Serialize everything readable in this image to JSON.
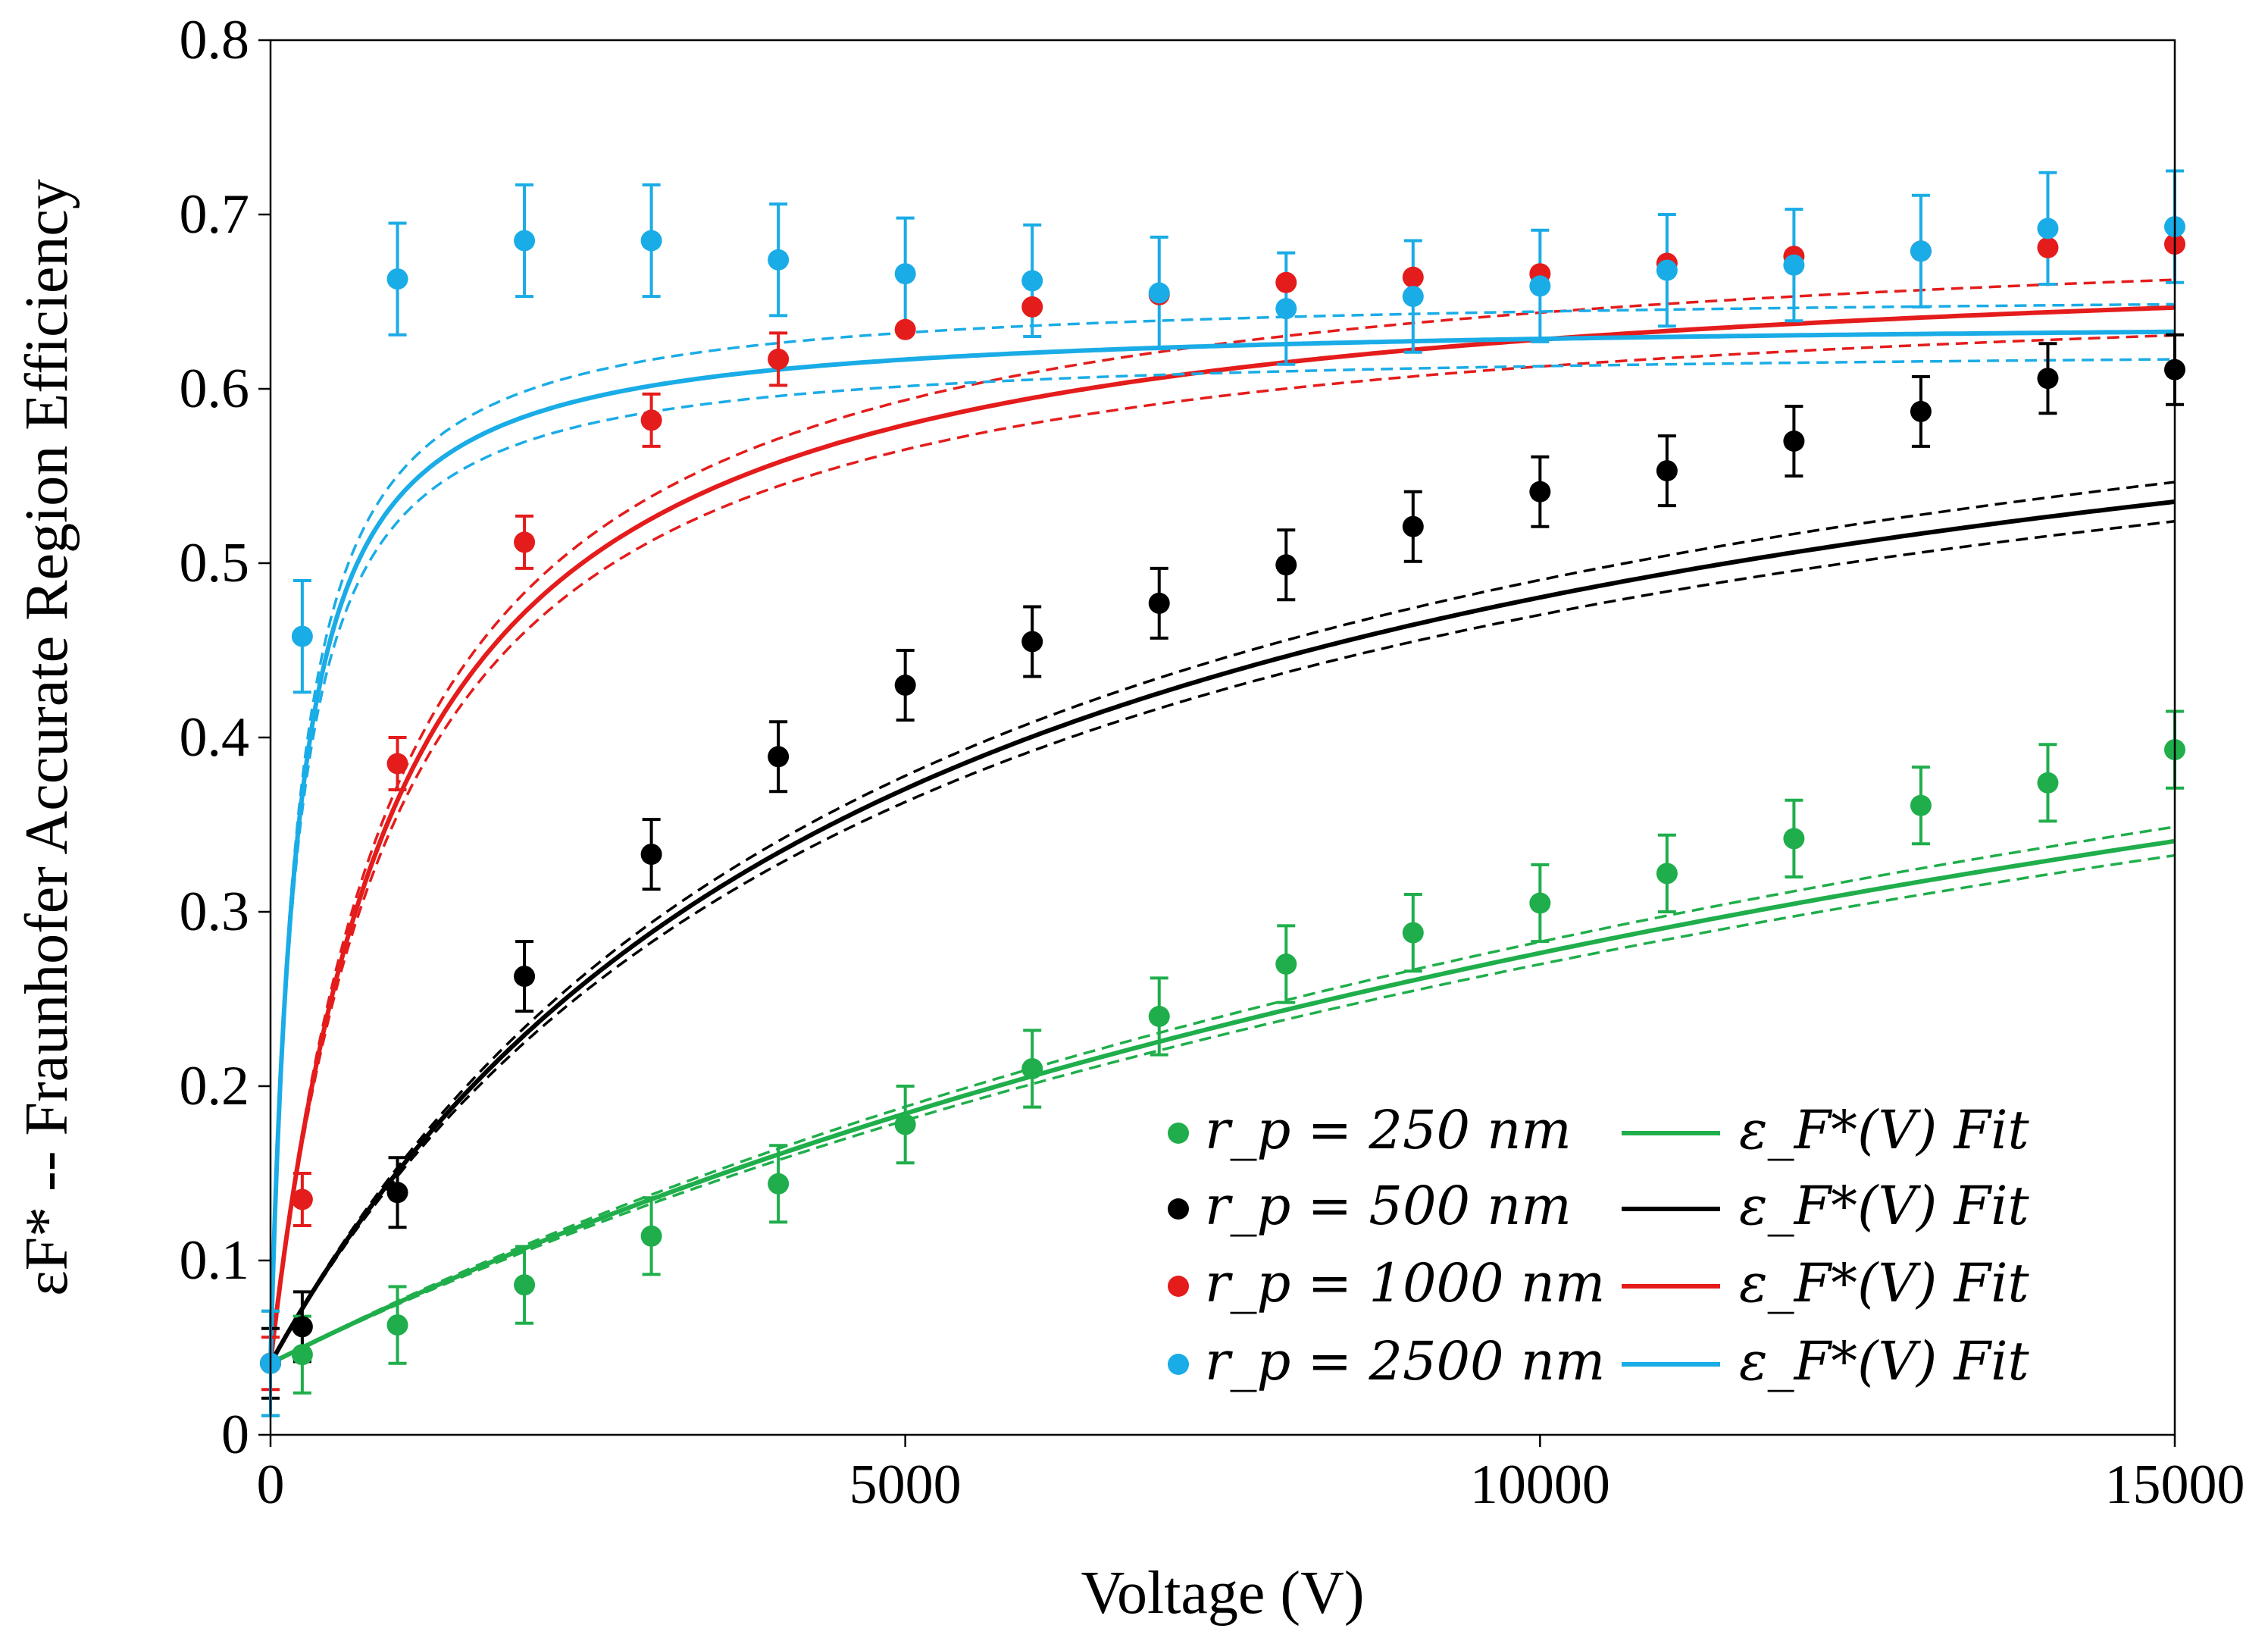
{
  "chart_data": {
    "type": "scatter",
    "xlabel": "Voltage (V)",
    "ylabel": "εF* -- Fraunhofer Accurate Region Efficiency",
    "xlim": [
      0,
      15000
    ],
    "ylim": [
      0,
      0.8
    ],
    "xticks": [
      0,
      5000,
      10000,
      15000
    ],
    "yticks": [
      0,
      0.1,
      0.2,
      0.3,
      0.4,
      0.5,
      0.6,
      0.7,
      0.8
    ],
    "legend_position": "bottom-right",
    "grid": false,
    "series": [
      {
        "name": "r_p = 250 nm",
        "fit_name": "ε_F*(V) Fit",
        "color": "#1fae4b",
        "x": [
          0,
          250,
          1000,
          2000,
          3000,
          4000,
          5000,
          6000,
          7000,
          8000,
          9000,
          10000,
          11000,
          12000,
          13000,
          14000,
          15000
        ],
        "y": [
          0.041,
          0.046,
          0.063,
          0.086,
          0.114,
          0.144,
          0.178,
          0.21,
          0.24,
          0.27,
          0.288,
          0.305,
          0.322,
          0.342,
          0.361,
          0.374,
          0.393
        ],
        "err": [
          0.03,
          0.022,
          0.022,
          0.022,
          0.022,
          0.022,
          0.022,
          0.022,
          0.022,
          0.022,
          0.022,
          0.022,
          0.022,
          0.022,
          0.022,
          0.022,
          0.022
        ],
        "fit": {
          "a": 0.041,
          "b": 0.7,
          "c": 18000,
          "band": 0.018
        }
      },
      {
        "name": "r_p = 500 nm",
        "fit_name": "ε_F*(V) Fit",
        "color": "#000000",
        "x": [
          0,
          250,
          1000,
          2000,
          3000,
          4000,
          5000,
          6000,
          7000,
          8000,
          9000,
          10000,
          11000,
          12000,
          13000,
          14000,
          15000
        ],
        "y": [
          0.041,
          0.062,
          0.139,
          0.263,
          0.333,
          0.389,
          0.43,
          0.455,
          0.477,
          0.499,
          0.521,
          0.541,
          0.553,
          0.57,
          0.587,
          0.606,
          0.611
        ],
        "err": [
          0.02,
          0.02,
          0.02,
          0.02,
          0.02,
          0.02,
          0.02,
          0.02,
          0.02,
          0.02,
          0.02,
          0.02,
          0.02,
          0.02,
          0.02,
          0.02,
          0.02
        ],
        "fit": {
          "a": 0.041,
          "b": 0.7,
          "c": 5000,
          "band": 0.015
        }
      },
      {
        "name": "r_p = 1000 nm",
        "fit_name": "ε_F*(V) Fit",
        "color": "#e41c1c",
        "x": [
          0,
          250,
          1000,
          2000,
          3000,
          4000,
          5000,
          6000,
          7000,
          8000,
          9000,
          10000,
          11000,
          12000,
          13000,
          14000,
          15000
        ],
        "y": [
          0.041,
          0.135,
          0.385,
          0.512,
          0.582,
          0.617,
          0.634,
          0.647,
          0.654,
          0.661,
          0.664,
          0.666,
          0.672,
          0.676,
          0.679,
          0.681,
          0.683
        ],
        "err": [
          0.015,
          0.015,
          0.015,
          0.015,
          0.015,
          0.015,
          0.0,
          0.0,
          0.0,
          0.0,
          0.0,
          0.0,
          0.0,
          0.0,
          0.0,
          0.0,
          0.0
        ],
        "fit": {
          "a": 0.041,
          "b": 0.687,
          "c": 1000,
          "band": 0.017
        }
      },
      {
        "name": "r_p = 2500 nm",
        "fit_name": "ε_F*(V) Fit",
        "color": "#1aace6",
        "x": [
          0,
          250,
          1000,
          2000,
          3000,
          4000,
          5000,
          6000,
          7000,
          8000,
          9000,
          10000,
          11000,
          12000,
          13000,
          14000,
          15000
        ],
        "y": [
          0.041,
          0.458,
          0.663,
          0.685,
          0.685,
          0.674,
          0.666,
          0.662,
          0.655,
          0.646,
          0.653,
          0.659,
          0.668,
          0.671,
          0.679,
          0.692,
          0.693
        ],
        "err": [
          0.03,
          0.032,
          0.032,
          0.032,
          0.032,
          0.032,
          0.032,
          0.032,
          0.032,
          0.032,
          0.032,
          0.032,
          0.032,
          0.032,
          0.032,
          0.032,
          0.032
        ],
        "fit": {
          "a": 0.041,
          "b": 0.641,
          "c": 210,
          "band": 0.016
        }
      }
    ]
  }
}
